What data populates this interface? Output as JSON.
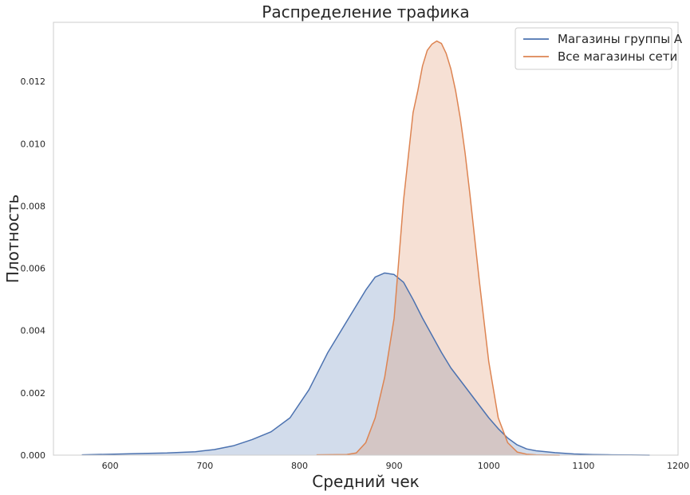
{
  "chart_data": {
    "type": "area",
    "title": "Распределение трафика",
    "xlabel": "Средний чек",
    "ylabel": "Плотность",
    "xlim": [
      540,
      1200
    ],
    "ylim": [
      0,
      0.0139
    ],
    "xticks": [
      600,
      700,
      800,
      900,
      1000,
      1100,
      1200
    ],
    "yticks": [
      0.0,
      0.002,
      0.004,
      0.006,
      0.008,
      0.01,
      0.012
    ],
    "ytick_labels": [
      "0.000",
      "0.002",
      "0.004",
      "0.006",
      "0.008",
      "0.010",
      "0.012"
    ],
    "grid": false,
    "legend_position": "top-right",
    "series": [
      {
        "name": "Магазины группы А",
        "color": "#4c72b0",
        "x": [
          570,
          600,
          630,
          660,
          690,
          710,
          730,
          750,
          770,
          790,
          810,
          830,
          850,
          870,
          880,
          890,
          900,
          910,
          920,
          930,
          940,
          950,
          960,
          970,
          980,
          990,
          1000,
          1010,
          1020,
          1030,
          1040,
          1050,
          1070,
          1090,
          1110,
          1130,
          1150,
          1170
        ],
        "y": [
          1e-05,
          3e-05,
          5e-05,
          7e-05,
          0.00011,
          0.00018,
          0.0003,
          0.0005,
          0.00075,
          0.0012,
          0.0021,
          0.0033,
          0.0043,
          0.0053,
          0.00572,
          0.00585,
          0.0058,
          0.00555,
          0.005,
          0.0044,
          0.00385,
          0.0033,
          0.0028,
          0.0024,
          0.002,
          0.0016,
          0.0012,
          0.00085,
          0.00055,
          0.00033,
          0.0002,
          0.00014,
          8e-05,
          4e-05,
          2e-05,
          1e-05,
          5e-06,
          1e-06
        ]
      },
      {
        "name": "Все магазины сети",
        "color": "#dd8452",
        "x": [
          818,
          850,
          860,
          870,
          880,
          890,
          900,
          910,
          920,
          925,
          930,
          935,
          940,
          945,
          950,
          955,
          960,
          965,
          970,
          975,
          980,
          990,
          1000,
          1010,
          1020,
          1030,
          1040,
          1050,
          1060,
          1075
        ],
        "y": [
          1e-05,
          2e-05,
          7e-05,
          0.0004,
          0.0012,
          0.0025,
          0.0044,
          0.0082,
          0.011,
          0.0117,
          0.0125,
          0.013,
          0.0132,
          0.0133,
          0.01322,
          0.0129,
          0.0124,
          0.0117,
          0.0108,
          0.0097,
          0.0084,
          0.0056,
          0.003,
          0.0012,
          0.0004,
          0.0001,
          3e-05,
          1e-05,
          3e-06,
          0.0
        ]
      }
    ]
  }
}
